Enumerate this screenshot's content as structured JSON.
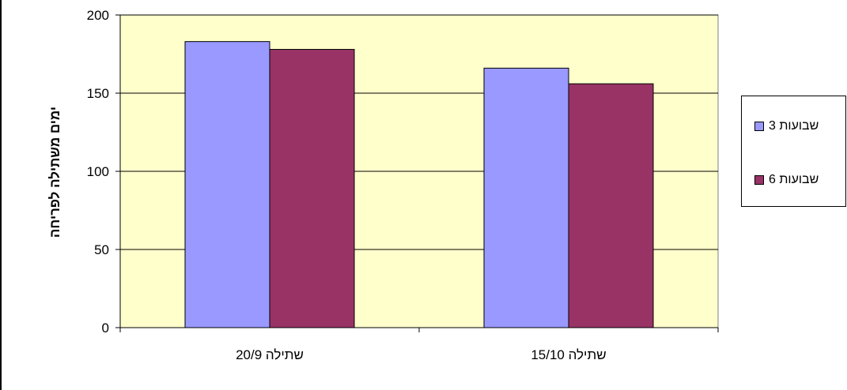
{
  "chart_data": {
    "type": "bar",
    "categories": [
      "שתילה 20/9",
      "שתילה 15/10"
    ],
    "series": [
      {
        "name": "שבועות 3",
        "values": [
          183,
          166
        ],
        "color": "#9999ff"
      },
      {
        "name": "שבועות 6",
        "values": [
          178,
          156
        ],
        "color": "#993366"
      }
    ],
    "ylabel": "ימים משתילה לפריחה",
    "xlabel": "",
    "ylim": [
      0,
      200
    ],
    "yticks": [
      "0",
      "50",
      "100",
      "150",
      "200"
    ],
    "grid": true,
    "legend": "right",
    "plot_background": "#ffffcc"
  }
}
